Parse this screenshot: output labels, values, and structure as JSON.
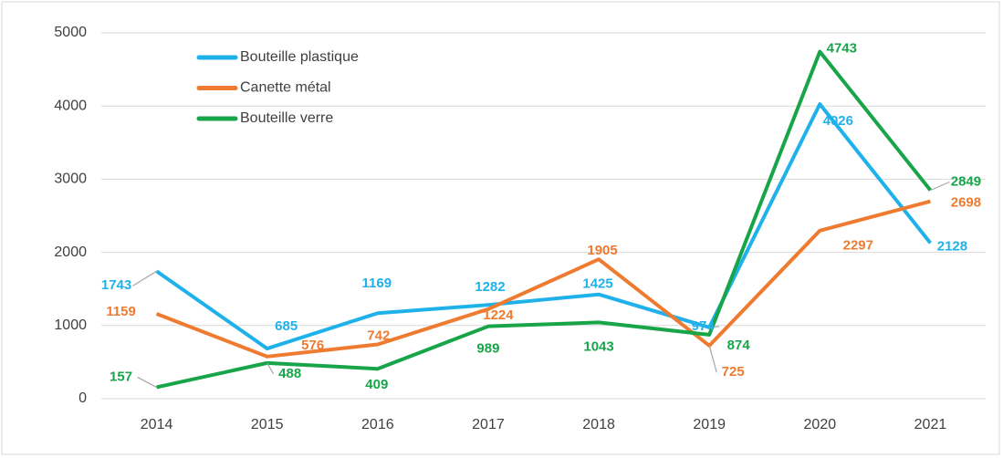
{
  "chart_data": {
    "type": "line",
    "categories": [
      "2014",
      "2015",
      "2016",
      "2017",
      "2018",
      "2019",
      "2020",
      "2021"
    ],
    "series": [
      {
        "name": "Bouteille plastique",
        "color": "#1fb1ea",
        "values": [
          1743,
          685,
          1169,
          1282,
          1425,
          974,
          4026,
          2128
        ]
      },
      {
        "name": "Canette métal",
        "color": "#ee7b30",
        "values": [
          1159,
          576,
          742,
          1224,
          1905,
          725,
          2297,
          2698
        ]
      },
      {
        "name": "Bouteille verre",
        "color": "#18a54a",
        "values": [
          157,
          488,
          409,
          989,
          1043,
          874,
          4743,
          2849
        ]
      }
    ],
    "ylim": [
      0,
      5000
    ],
    "yticks": [
      0,
      1000,
      2000,
      3000,
      4000,
      5000
    ],
    "grid": true
  }
}
